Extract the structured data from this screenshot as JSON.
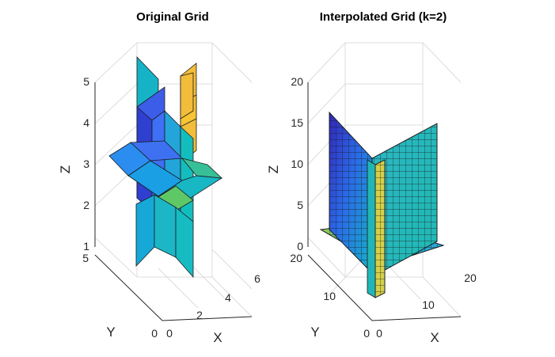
{
  "chart_data": [
    {
      "type": "slice3d",
      "title": "Original Grid",
      "xlabel": "X",
      "ylabel": "Y",
      "zlabel": "Z",
      "xlim": [
        0,
        6
      ],
      "ylim": [
        0,
        5
      ],
      "zlim": [
        1,
        5
      ],
      "xticks": [
        "0",
        "2",
        "4",
        "6"
      ],
      "yticks": [
        "0",
        "5"
      ],
      "zticks": [
        "1",
        "2",
        "3",
        "4",
        "5"
      ],
      "colormap": "parula",
      "slices": {
        "x": [
          2.5
        ],
        "y": [
          2.5
        ],
        "z": [
          3
        ]
      },
      "grid": true
    },
    {
      "type": "slice3d",
      "title": "Interpolated Grid (k=2)",
      "xlabel": "X",
      "ylabel": "Y",
      "zlabel": "Z",
      "xlim": [
        0,
        20
      ],
      "ylim": [
        0,
        20
      ],
      "zlim": [
        0,
        20
      ],
      "xticks": [
        "0",
        "10",
        "20"
      ],
      "yticks": [
        "0",
        "10",
        "20"
      ],
      "zticks": [
        "0",
        "5",
        "10",
        "15",
        "20"
      ],
      "colormap": "parula",
      "slices": {
        "x": [
          9
        ],
        "y": [
          9
        ],
        "z": [
          1
        ]
      },
      "grid": true
    }
  ],
  "colors": {
    "parula_low": "#3e26a8",
    "parula_blue": "#2a7ef0",
    "parula_cyan": "#17b8c4",
    "parula_green": "#69ca5a",
    "parula_high": "#f5be39"
  }
}
